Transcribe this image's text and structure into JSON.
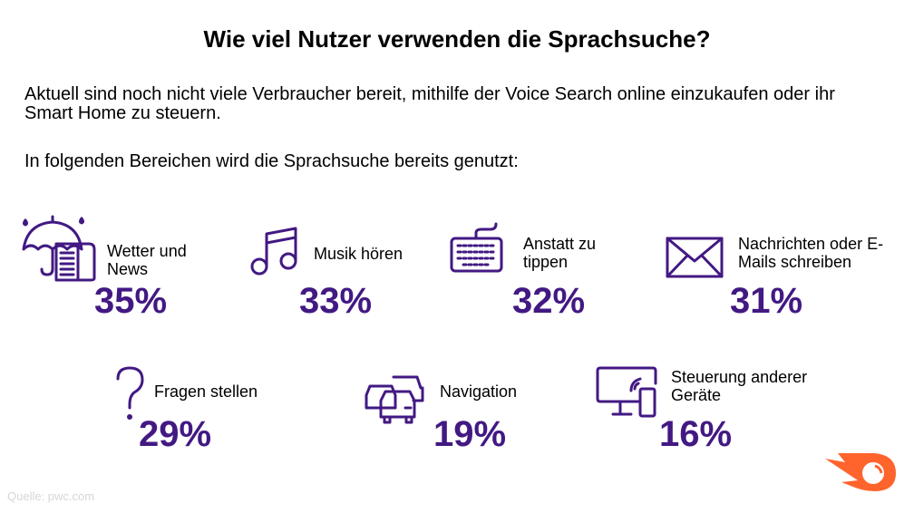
{
  "title": "Wie viel Nutzer verwenden die Sprachsuche?",
  "intro": "Aktuell sind noch nicht viele Verbraucher bereit, mithilfe der Voice Search online einzukaufen oder ihr Smart Home zu steuern.",
  "subheading": "In folgenden Bereichen wird die Sprachsuche bereits genutzt:",
  "colors": {
    "accent": "#421983",
    "brand": "#ff642d"
  },
  "items": [
    {
      "label": "Wetter und News",
      "value": "35%",
      "icon": "umbrella-newspaper-icon"
    },
    {
      "label": "Musik hören",
      "value": "33%",
      "icon": "music-note-icon"
    },
    {
      "label": "Anstatt zu tippen",
      "value": "32%",
      "icon": "keyboard-icon"
    },
    {
      "label": "Nachrichten oder E-Mails schreiben",
      "value": "31%",
      "icon": "envelope-icon"
    },
    {
      "label": "Fragen stellen",
      "value": "29%",
      "icon": "question-mark-icon"
    },
    {
      "label": "Navigation",
      "value": "19%",
      "icon": "cars-icon"
    },
    {
      "label": "Steuerung anderer Geräte",
      "value": "16%",
      "icon": "monitor-phone-icon"
    }
  ],
  "source": "Quelle: pwc.com",
  "logo": "semrush-logo"
}
